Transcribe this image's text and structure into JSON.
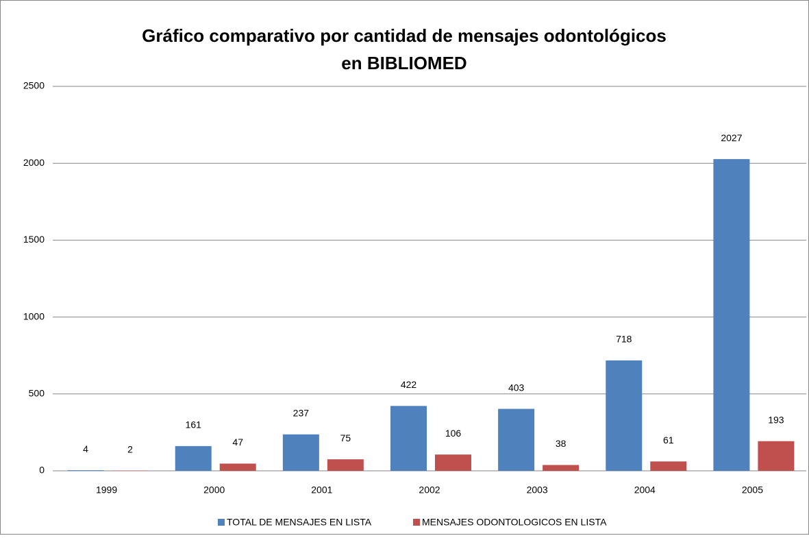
{
  "chart_data": {
    "type": "bar",
    "title": [
      "Gráfico comparativo por cantidad de mensajes odontológicos",
      "en BIBLIOMED"
    ],
    "categories": [
      "1999",
      "2000",
      "2001",
      "2002",
      "2003",
      "2004",
      "2005"
    ],
    "series": [
      {
        "name": "TOTAL DE MENSAJES EN LISTA",
        "color": "#4f81bd",
        "values": [
          4,
          161,
          237,
          422,
          403,
          718,
          2027
        ]
      },
      {
        "name": "MENSAJES ODONTOLOGICOS EN LISTA",
        "color": "#c0504d",
        "values": [
          2,
          47,
          75,
          106,
          38,
          61,
          193
        ]
      }
    ],
    "ylim": [
      0,
      2500
    ],
    "yticks": [
      0,
      500,
      1000,
      1500,
      2000,
      2500
    ],
    "grid": true,
    "legend": "bottom"
  }
}
